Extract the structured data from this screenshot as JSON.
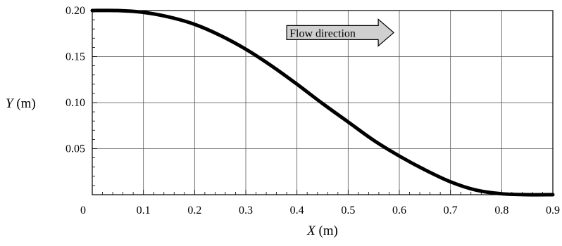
{
  "chart_data": {
    "type": "line",
    "title": "",
    "xlabel": {
      "symbol": "X",
      "unit": " (m)"
    },
    "ylabel": {
      "symbol": "Y",
      "unit": " (m)"
    },
    "xlim": [
      0,
      0.9
    ],
    "ylim": [
      0,
      0.2
    ],
    "grid": true,
    "x_ticks": [
      0,
      0.1,
      0.2,
      0.3,
      0.4,
      0.5,
      0.6,
      0.7,
      0.8,
      0.9
    ],
    "x_tick_labels": [
      "0",
      "0.1",
      "0.2",
      "0.3",
      "0.4",
      "0.5",
      "0.6",
      "0.7",
      "0.8",
      "0.9"
    ],
    "y_ticks": [
      0.05,
      0.1,
      0.15,
      0.2
    ],
    "y_tick_labels": [
      "0.05",
      "0.10",
      "0.15",
      "0.20"
    ],
    "series": [
      {
        "x": [
          0,
          0.05,
          0.1,
          0.15,
          0.2,
          0.25,
          0.3,
          0.35,
          0.4,
          0.45,
          0.5,
          0.55,
          0.6,
          0.65,
          0.7,
          0.75,
          0.8,
          0.85,
          0.9
        ],
        "values": [
          0.2,
          0.2,
          0.198,
          0.193,
          0.185,
          0.173,
          0.158,
          0.14,
          0.12,
          0.099,
          0.079,
          0.059,
          0.042,
          0.027,
          0.014,
          0.005,
          0.001,
          0.0,
          0.0
        ],
        "color": "#000000"
      }
    ],
    "annotation": {
      "text": "Flow direction",
      "at_x": 0.38,
      "at_y": 0.176,
      "fill": "#d0d0d0"
    }
  }
}
